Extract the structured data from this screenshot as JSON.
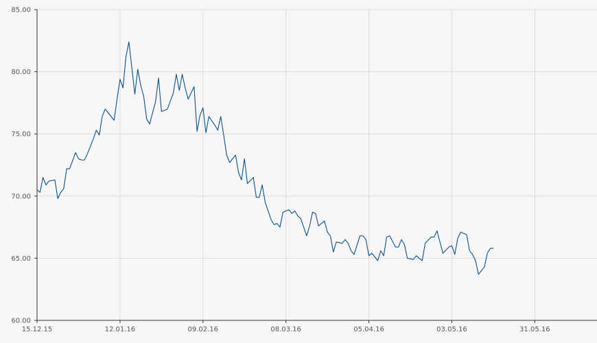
{
  "chart_data": {
    "type": "line",
    "title": "",
    "xlabel": "",
    "ylabel": "",
    "ylim": [
      60,
      85
    ],
    "grid": true,
    "line_color": "#0a4f8a",
    "y_ticks": [
      "60.00",
      "65.00",
      "70.00",
      "75.00",
      "80.00",
      "85.00"
    ],
    "x_ticks": [
      "15.12.15",
      "12.01.16",
      "09.02.16",
      "08.03.16",
      "05.04.16",
      "03.05.16",
      "31.05.16"
    ],
    "x_tick_dates": [
      "2015-12-15",
      "2016-01-12",
      "2016-02-09",
      "2016-03-08",
      "2016-04-05",
      "2016-05-03",
      "2016-05-31"
    ],
    "x_end": "2016-06-21",
    "series": [
      {
        "values": [
          [
            "2015-12-15",
            70.5
          ],
          [
            "2015-12-16",
            70.3
          ],
          [
            "2015-12-17",
            71.5
          ],
          [
            "2015-12-18",
            70.9
          ],
          [
            "2015-12-19",
            71.2
          ],
          [
            "2015-12-21",
            71.3
          ],
          [
            "2015-12-22",
            69.8
          ],
          [
            "2015-12-23",
            70.3
          ],
          [
            "2015-12-24",
            70.6
          ],
          [
            "2015-12-25",
            72.2
          ],
          [
            "2015-12-26",
            72.2
          ],
          [
            "2015-12-28",
            73.5
          ],
          [
            "2015-12-29",
            73.0
          ],
          [
            "2015-12-30",
            72.9
          ],
          [
            "2015-12-31",
            72.9
          ],
          [
            "2016-01-01",
            73.4
          ],
          [
            "2016-01-03",
            74.6
          ],
          [
            "2016-01-04",
            75.3
          ],
          [
            "2016-01-05",
            74.9
          ],
          [
            "2016-01-06",
            76.4
          ],
          [
            "2016-01-07",
            77.0
          ],
          [
            "2016-01-08",
            76.7
          ],
          [
            "2016-01-10",
            76.1
          ],
          [
            "2016-01-11",
            77.8
          ],
          [
            "2016-01-12",
            79.4
          ],
          [
            "2016-01-13",
            78.7
          ],
          [
            "2016-01-14",
            81.2
          ],
          [
            "2016-01-15",
            82.4
          ],
          [
            "2016-01-17",
            78.2
          ],
          [
            "2016-01-18",
            80.2
          ],
          [
            "2016-01-19",
            78.9
          ],
          [
            "2016-01-20",
            78.0
          ],
          [
            "2016-01-21",
            76.2
          ],
          [
            "2016-01-22",
            75.8
          ],
          [
            "2016-01-24",
            77.6
          ],
          [
            "2016-01-25",
            79.5
          ],
          [
            "2016-01-26",
            76.8
          ],
          [
            "2016-01-27",
            76.9
          ],
          [
            "2016-01-28",
            77.0
          ],
          [
            "2016-01-30",
            78.3
          ],
          [
            "2016-01-31",
            79.8
          ],
          [
            "2016-02-01",
            78.5
          ],
          [
            "2016-02-02",
            79.8
          ],
          [
            "2016-02-03",
            78.7
          ],
          [
            "2016-02-04",
            77.8
          ],
          [
            "2016-02-06",
            78.8
          ],
          [
            "2016-02-07",
            75.2
          ],
          [
            "2016-02-08",
            76.5
          ],
          [
            "2016-02-09",
            77.1
          ],
          [
            "2016-02-10",
            75.1
          ],
          [
            "2016-02-11",
            76.4
          ],
          [
            "2016-02-13",
            75.7
          ],
          [
            "2016-02-14",
            75.3
          ],
          [
            "2016-02-15",
            76.4
          ],
          [
            "2016-02-16",
            74.9
          ],
          [
            "2016-02-17",
            73.3
          ],
          [
            "2016-02-18",
            72.7
          ],
          [
            "2016-02-20",
            73.3
          ],
          [
            "2016-02-21",
            71.9
          ],
          [
            "2016-02-22",
            71.3
          ],
          [
            "2016-02-23",
            73.0
          ],
          [
            "2016-02-24",
            71.0
          ],
          [
            "2016-02-26",
            71.5
          ],
          [
            "2016-02-27",
            69.9
          ],
          [
            "2016-02-28",
            69.9
          ],
          [
            "2016-02-29",
            70.9
          ],
          [
            "2016-03-01",
            69.5
          ],
          [
            "2016-03-03",
            68.1
          ],
          [
            "2016-03-04",
            67.7
          ],
          [
            "2016-03-05",
            67.8
          ],
          [
            "2016-03-06",
            67.5
          ],
          [
            "2016-03-07",
            68.7
          ],
          [
            "2016-03-09",
            68.9
          ],
          [
            "2016-03-10",
            68.6
          ],
          [
            "2016-03-11",
            68.8
          ],
          [
            "2016-03-12",
            68.4
          ],
          [
            "2016-03-13",
            68.2
          ],
          [
            "2016-03-15",
            66.8
          ],
          [
            "2016-03-16",
            67.6
          ],
          [
            "2016-03-17",
            68.7
          ],
          [
            "2016-03-18",
            68.6
          ],
          [
            "2016-03-19",
            67.6
          ],
          [
            "2016-03-21",
            68.0
          ],
          [
            "2016-03-22",
            67.1
          ],
          [
            "2016-03-23",
            66.8
          ],
          [
            "2016-03-24",
            65.5
          ],
          [
            "2016-03-25",
            66.3
          ],
          [
            "2016-03-27",
            66.2
          ],
          [
            "2016-03-28",
            66.5
          ],
          [
            "2016-03-29",
            66.2
          ],
          [
            "2016-03-30",
            65.6
          ],
          [
            "2016-03-31",
            65.3
          ],
          [
            "2016-04-02",
            66.8
          ],
          [
            "2016-04-03",
            66.8
          ],
          [
            "2016-04-04",
            66.5
          ],
          [
            "2016-04-05",
            65.2
          ],
          [
            "2016-04-06",
            65.4
          ],
          [
            "2016-04-08",
            64.8
          ],
          [
            "2016-04-09",
            65.6
          ],
          [
            "2016-04-10",
            65.2
          ],
          [
            "2016-04-11",
            66.7
          ],
          [
            "2016-04-12",
            66.8
          ],
          [
            "2016-04-14",
            65.9
          ],
          [
            "2016-04-15",
            65.9
          ],
          [
            "2016-04-16",
            66.5
          ],
          [
            "2016-04-17",
            66.1
          ],
          [
            "2016-04-18",
            65.0
          ],
          [
            "2016-04-20",
            64.9
          ],
          [
            "2016-04-21",
            65.2
          ],
          [
            "2016-04-22",
            65.0
          ],
          [
            "2016-04-23",
            64.8
          ],
          [
            "2016-04-24",
            66.2
          ],
          [
            "2016-04-26",
            66.7
          ],
          [
            "2016-04-27",
            66.7
          ],
          [
            "2016-04-28",
            67.2
          ],
          [
            "2016-04-29",
            66.3
          ],
          [
            "2016-04-30",
            65.4
          ],
          [
            "2016-05-02",
            65.9
          ],
          [
            "2016-05-03",
            66.0
          ],
          [
            "2016-05-04",
            65.3
          ],
          [
            "2016-05-05",
            66.6
          ],
          [
            "2016-05-06",
            67.1
          ],
          [
            "2016-05-08",
            66.9
          ],
          [
            "2016-05-09",
            65.6
          ],
          [
            "2016-05-10",
            65.3
          ],
          [
            "2016-05-11",
            64.8
          ],
          [
            "2016-05-12",
            63.7
          ],
          [
            "2016-05-14",
            64.3
          ],
          [
            "2016-05-15",
            65.4
          ],
          [
            "2016-05-16",
            65.8
          ],
          [
            "2016-05-17",
            65.8
          ]
        ]
      }
    ]
  }
}
